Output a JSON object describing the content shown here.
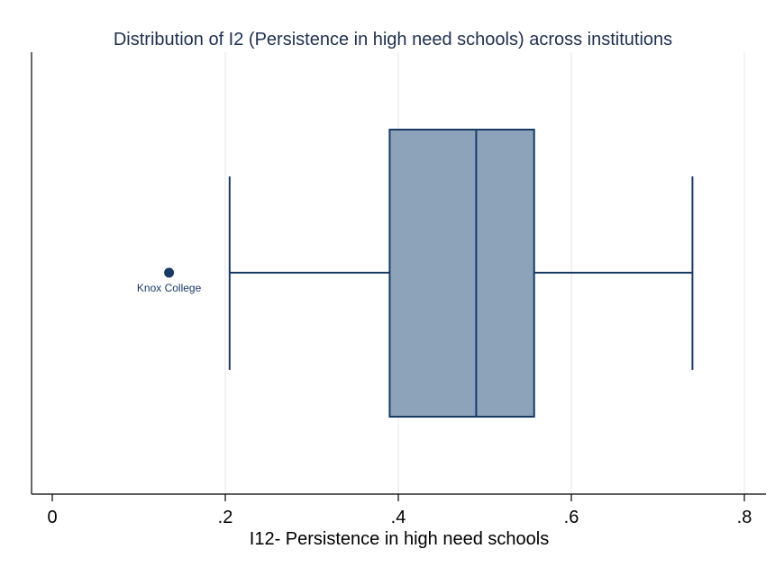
{
  "chart_data": {
    "type": "box",
    "title": "Distribution of I2 (Persistence in high need schools) across institutions",
    "xlabel": "I12- Persistence in high need schools",
    "ylabel": "",
    "xlim": [
      0,
      0.8
    ],
    "xticks": [
      {
        "value": 0,
        "label": "0"
      },
      {
        "value": 0.2,
        "label": ".2"
      },
      {
        "value": 0.4,
        "label": ".4"
      },
      {
        "value": 0.6,
        "label": ".6"
      },
      {
        "value": 0.8,
        "label": ".8"
      }
    ],
    "grid": true,
    "box": {
      "whisker_low": 0.205,
      "q1": 0.39,
      "median": 0.49,
      "q3": 0.557,
      "whisker_high": 0.74
    },
    "outliers": [
      {
        "value": 0.135,
        "label": "Knox College"
      }
    ],
    "colors": {
      "box_fill": "#8ca3ba",
      "box_line": "#1a3a66",
      "grid": "#e6e6e6",
      "title": "#1f2f4f"
    }
  }
}
